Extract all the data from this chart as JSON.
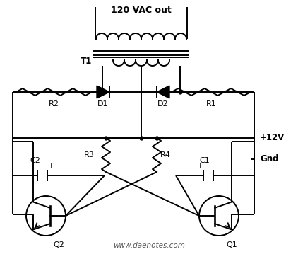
{
  "title": "120 VAC out",
  "background_color": "#ffffff",
  "line_color": "#000000",
  "line_width": 1.4,
  "watermark": "www.daenotes.com",
  "plus12V": "+12V",
  "gnd": "Gnd",
  "T1": "T1"
}
